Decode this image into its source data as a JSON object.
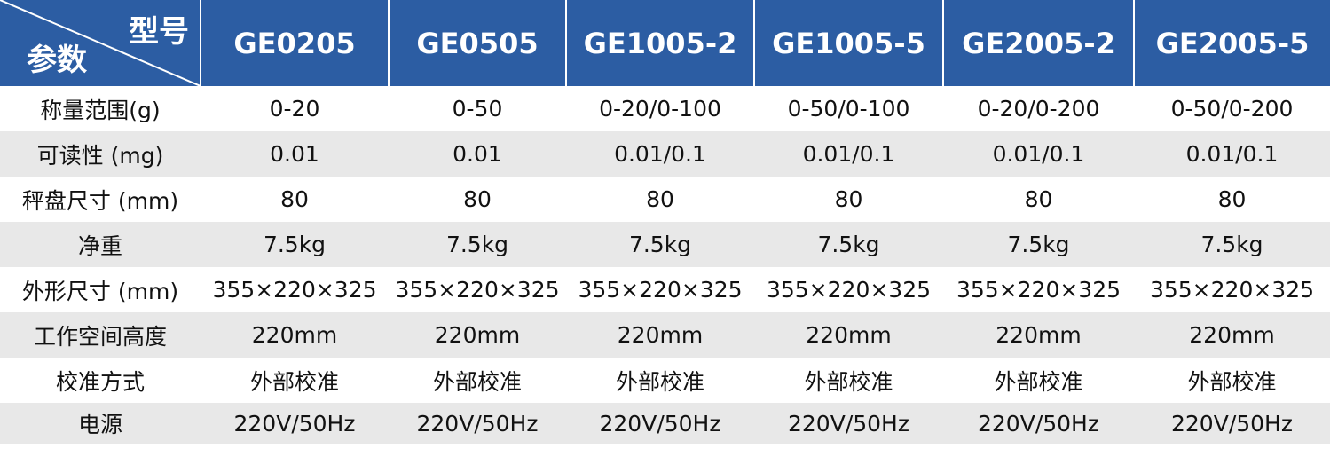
{
  "header": {
    "corner_top": "型号",
    "corner_bottom": "参数",
    "models": [
      "GE0205",
      "GE0505",
      "GE1005-2",
      "GE1005-5",
      "GE2005-2",
      "GE2005-5"
    ]
  },
  "table": {
    "rows": [
      [
        "称量范围(g)",
        "0-20",
        "0-50",
        "0-20/0-100",
        "0-50/0-100",
        "0-20/0-200",
        "0-50/0-200"
      ],
      [
        "可读性 (mg)",
        "0.01",
        "0.01",
        "0.01/0.1",
        "0.01/0.1",
        "0.01/0.1",
        "0.01/0.1"
      ],
      [
        "秤盘尺寸 (mm)",
        "80",
        "80",
        "80",
        "80",
        "80",
        "80"
      ],
      [
        "净重",
        "7.5kg",
        "7.5kg",
        "7.5kg",
        "7.5kg",
        "7.5kg",
        "7.5kg"
      ],
      [
        "外形尺寸 (mm)",
        "355×220×325",
        "355×220×325",
        "355×220×325",
        "355×220×325",
        "355×220×325",
        "355×220×325"
      ],
      [
        "工作空间高度",
        "220mm",
        "220mm",
        "220mm",
        "220mm",
        "220mm",
        "220mm"
      ],
      [
        "校准方式",
        "外部校准",
        "外部校准",
        "外部校准",
        "外部校准",
        "外部校准",
        "外部校准"
      ],
      [
        "电源",
        "220V/50Hz",
        "220V/50Hz",
        "220V/50Hz",
        "220V/50Hz",
        "220V/50Hz",
        "220V/50Hz"
      ]
    ]
  }
}
